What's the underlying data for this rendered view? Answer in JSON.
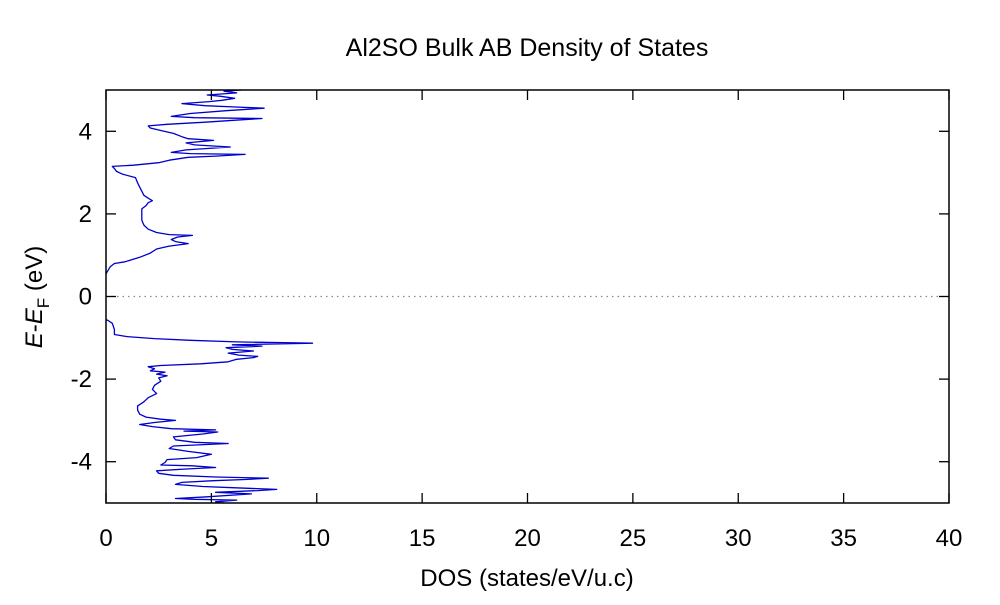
{
  "chart_data": {
    "type": "line",
    "title": "Al2SO Bulk AB Density of States",
    "xlabel": "DOS (states/eV/u.c)",
    "ylabel": {
      "main": "E",
      "dash": "-",
      "sub_main": "E",
      "sub": "F",
      "unit": " (eV)"
    },
    "xlim": [
      0,
      40
    ],
    "ylim": [
      -5,
      5
    ],
    "xticks": [
      0,
      5,
      10,
      15,
      20,
      25,
      30,
      35,
      40
    ],
    "xtick_labels": [
      "0",
      "5",
      "10",
      "15",
      "20",
      "25",
      "30",
      "35",
      "40"
    ],
    "yticks": [
      -4,
      -2,
      0,
      2,
      4
    ],
    "ytick_labels": [
      "-4",
      "-2",
      "0",
      "2",
      "4"
    ],
    "grid": false,
    "legend": "none",
    "fermi_level": 0,
    "series": [
      {
        "color": "#0000cc",
        "points": [
          [
            5.6,
            -5.0
          ],
          [
            5.2,
            -4.97
          ],
          [
            6.2,
            -4.93
          ],
          [
            4.2,
            -4.91
          ],
          [
            3.3,
            -4.89
          ],
          [
            4.8,
            -4.85
          ],
          [
            6.9,
            -4.78
          ],
          [
            5.2,
            -4.74
          ],
          [
            7.2,
            -4.7
          ],
          [
            8.1,
            -4.67
          ],
          [
            6.0,
            -4.63
          ],
          [
            4.6,
            -4.6
          ],
          [
            3.3,
            -4.55
          ],
          [
            3.6,
            -4.5
          ],
          [
            5.1,
            -4.46
          ],
          [
            6.6,
            -4.43
          ],
          [
            7.7,
            -4.4
          ],
          [
            5.2,
            -4.37
          ],
          [
            3.2,
            -4.33
          ],
          [
            2.5,
            -4.28
          ],
          [
            2.4,
            -4.22
          ],
          [
            3.7,
            -4.18
          ],
          [
            5.2,
            -4.14
          ],
          [
            4.1,
            -4.1
          ],
          [
            2.6,
            -4.08
          ],
          [
            2.8,
            -4.02
          ],
          [
            2.9,
            -3.95
          ],
          [
            4.3,
            -3.9
          ],
          [
            5.0,
            -3.82
          ],
          [
            3.9,
            -3.75
          ],
          [
            3.0,
            -3.68
          ],
          [
            3.2,
            -3.62
          ],
          [
            4.9,
            -3.58
          ],
          [
            5.8,
            -3.56
          ],
          [
            4.2,
            -3.53
          ],
          [
            3.3,
            -3.47
          ],
          [
            3.2,
            -3.4
          ],
          [
            4.6,
            -3.33
          ],
          [
            5.3,
            -3.28
          ],
          [
            3.7,
            -3.26
          ],
          [
            5.2,
            -3.23
          ],
          [
            3.1,
            -3.2
          ],
          [
            2.2,
            -3.15
          ],
          [
            1.6,
            -3.1
          ],
          [
            2.3,
            -3.05
          ],
          [
            3.3,
            -3.0
          ],
          [
            2.6,
            -2.97
          ],
          [
            1.9,
            -2.92
          ],
          [
            1.6,
            -2.85
          ],
          [
            1.5,
            -2.75
          ],
          [
            1.5,
            -2.65
          ],
          [
            1.8,
            -2.55
          ],
          [
            2.0,
            -2.45
          ],
          [
            2.4,
            -2.35
          ],
          [
            2.2,
            -2.25
          ],
          [
            2.3,
            -2.15
          ],
          [
            2.6,
            -2.05
          ],
          [
            2.5,
            -1.97
          ],
          [
            2.9,
            -1.92
          ],
          [
            2.4,
            -1.88
          ],
          [
            2.8,
            -1.83
          ],
          [
            2.1,
            -1.8
          ],
          [
            2.3,
            -1.75
          ],
          [
            2.0,
            -1.7
          ],
          [
            2.6,
            -1.67
          ],
          [
            4.5,
            -1.63
          ],
          [
            5.8,
            -1.58
          ],
          [
            6.2,
            -1.52
          ],
          [
            7.0,
            -1.48
          ],
          [
            7.2,
            -1.45
          ],
          [
            6.3,
            -1.42
          ],
          [
            5.8,
            -1.37
          ],
          [
            7.0,
            -1.32
          ],
          [
            6.0,
            -1.28
          ],
          [
            5.7,
            -1.24
          ],
          [
            7.4,
            -1.2
          ],
          [
            6.0,
            -1.17
          ],
          [
            9.8,
            -1.13
          ],
          [
            6.2,
            -1.1
          ],
          [
            4.0,
            -1.06
          ],
          [
            2.3,
            -1.02
          ],
          [
            1.0,
            -0.97
          ],
          [
            0.4,
            -0.92
          ],
          [
            0.4,
            -0.8
          ],
          [
            0.3,
            -0.65
          ],
          [
            0.1,
            -0.58
          ],
          [
            0.0,
            -0.56
          ],
          null,
          [
            0.0,
            0.55
          ],
          [
            0.2,
            0.72
          ],
          [
            0.4,
            0.8
          ],
          [
            0.9,
            0.84
          ],
          [
            1.6,
            0.95
          ],
          [
            2.1,
            1.05
          ],
          [
            2.4,
            1.15
          ],
          [
            3.0,
            1.22
          ],
          [
            3.9,
            1.28
          ],
          [
            3.3,
            1.33
          ],
          [
            3.1,
            1.38
          ],
          [
            3.4,
            1.44
          ],
          [
            4.1,
            1.48
          ],
          [
            3.0,
            1.5
          ],
          [
            2.4,
            1.55
          ],
          [
            2.0,
            1.63
          ],
          [
            1.8,
            1.73
          ],
          [
            1.7,
            1.85
          ],
          [
            1.7,
            2.0
          ],
          [
            1.7,
            2.12
          ],
          [
            1.9,
            2.2
          ],
          [
            2.0,
            2.27
          ],
          [
            2.2,
            2.32
          ],
          [
            2.0,
            2.38
          ],
          [
            1.8,
            2.45
          ],
          [
            1.7,
            2.55
          ],
          [
            1.6,
            2.65
          ],
          [
            1.5,
            2.75
          ],
          [
            1.4,
            2.88
          ],
          [
            0.8,
            2.96
          ],
          [
            0.5,
            3.03
          ],
          [
            0.4,
            3.1
          ],
          [
            0.3,
            3.15
          ],
          [
            1.3,
            3.18
          ],
          [
            2.5,
            3.24
          ],
          [
            3.0,
            3.3
          ],
          [
            3.9,
            3.37
          ],
          [
            5.2,
            3.4
          ],
          [
            6.6,
            3.44
          ],
          [
            4.0,
            3.46
          ],
          [
            3.1,
            3.49
          ],
          [
            3.8,
            3.55
          ],
          [
            5.9,
            3.62
          ],
          [
            4.2,
            3.67
          ],
          [
            3.8,
            3.72
          ],
          [
            5.1,
            3.78
          ],
          [
            3.9,
            3.82
          ],
          [
            3.6,
            3.87
          ],
          [
            3.2,
            3.95
          ],
          [
            2.6,
            4.02
          ],
          [
            2.1,
            4.08
          ],
          [
            2.0,
            4.13
          ],
          [
            2.9,
            4.17
          ],
          [
            4.7,
            4.22
          ],
          [
            6.5,
            4.28
          ],
          [
            7.4,
            4.31
          ],
          [
            4.2,
            4.33
          ],
          [
            3.1,
            4.36
          ],
          [
            4.0,
            4.43
          ],
          [
            5.7,
            4.5
          ],
          [
            7.5,
            4.56
          ],
          [
            6.0,
            4.59
          ],
          [
            4.7,
            4.62
          ],
          [
            3.6,
            4.67
          ],
          [
            4.9,
            4.72
          ],
          [
            5.5,
            4.75
          ],
          [
            6.1,
            4.8
          ],
          [
            5.4,
            4.85
          ],
          [
            4.8,
            4.88
          ],
          [
            6.2,
            4.93
          ],
          [
            5.6,
            4.97
          ],
          [
            6.4,
            5.0
          ]
        ]
      }
    ]
  }
}
